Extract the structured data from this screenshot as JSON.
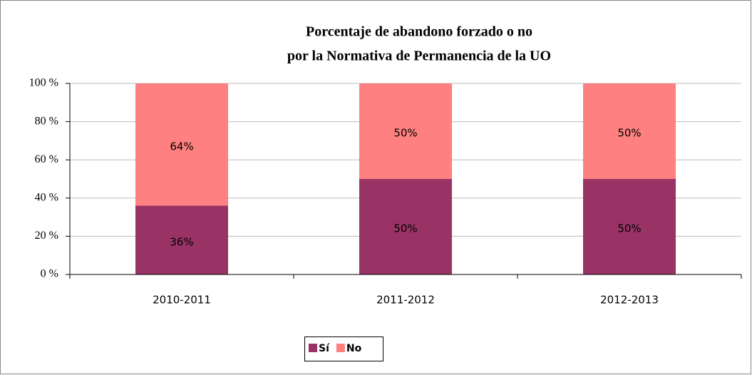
{
  "chart_data": {
    "type": "stacked_bar",
    "title": [
      "Porcentaje de abandono forzado o no",
      "por la Normativa de Permanencia de la UO"
    ],
    "categories": [
      "2010-2011",
      "2011-2012",
      "2012-2013"
    ],
    "series": [
      {
        "name": "Sí",
        "color": "#993366",
        "values": [
          36,
          50,
          50
        ],
        "value_labels": [
          "36%",
          "50%",
          "50%"
        ]
      },
      {
        "name": "No",
        "color": "#ff8080",
        "values": [
          64,
          50,
          50
        ],
        "value_labels": [
          "64%",
          "50%",
          "50%"
        ]
      }
    ],
    "ylim": [
      0,
      100
    ],
    "yticks": [
      {
        "value": 0,
        "label": "0 %"
      },
      {
        "value": 20,
        "label": "20 %"
      },
      {
        "value": 40,
        "label": "40 %"
      },
      {
        "value": 60,
        "label": "60 %"
      },
      {
        "value": 80,
        "label": "80 %"
      },
      {
        "value": 100,
        "label": "100 %"
      }
    ],
    "grid": true,
    "legend": "bottom"
  }
}
